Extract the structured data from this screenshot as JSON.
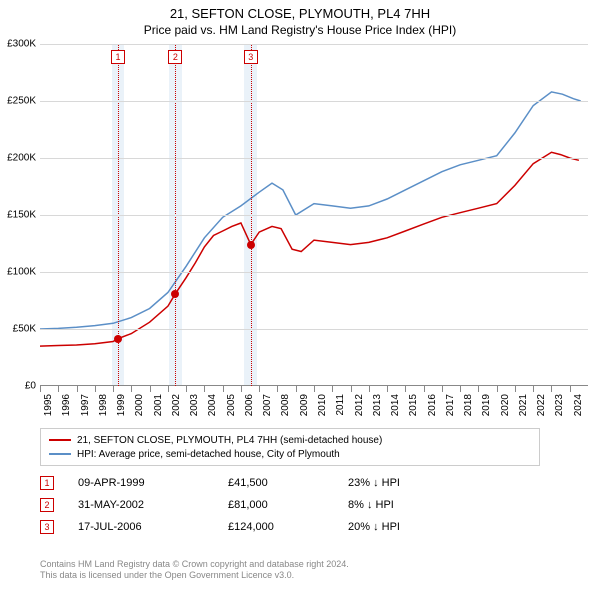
{
  "title": {
    "line1": "21, SEFTON CLOSE, PLYMOUTH, PL4 7HH",
    "line2": "Price paid vs. HM Land Registry's House Price Index (HPI)",
    "fontsize_line1": 13,
    "fontsize_line2": 12
  },
  "chart": {
    "type": "line",
    "background_color": "#ffffff",
    "grid_color": "#d8d8d8",
    "event_band_color": "#eaf2f9",
    "event_line_color": "#cc0000",
    "x": {
      "years": [
        1995,
        1996,
        1997,
        1998,
        1999,
        2000,
        2001,
        2002,
        2003,
        2004,
        2005,
        2006,
        2007,
        2008,
        2009,
        2010,
        2011,
        2012,
        2013,
        2014,
        2015,
        2016,
        2017,
        2018,
        2019,
        2020,
        2021,
        2022,
        2023,
        2024
      ],
      "min": 1995,
      "max": 2025,
      "label_fontsize": 10
    },
    "y": {
      "min": 0,
      "max": 300000,
      "tick_step": 50000,
      "tick_labels": [
        "£0",
        "£50K",
        "£100K",
        "£150K",
        "£200K",
        "£250K",
        "£300K"
      ],
      "label_fontsize": 10
    },
    "series": [
      {
        "id": "property",
        "label": "21, SEFTON CLOSE, PLYMOUTH, PL4 7HH (semi-detached house)",
        "color": "#cc0000",
        "line_width": 1.5,
        "points": [
          [
            1995.0,
            35000
          ],
          [
            1996.0,
            35500
          ],
          [
            1997.0,
            36000
          ],
          [
            1998.0,
            37000
          ],
          [
            1999.0,
            39000
          ],
          [
            1999.27,
            41500
          ],
          [
            2000.0,
            46000
          ],
          [
            2001.0,
            56000
          ],
          [
            2002.0,
            70000
          ],
          [
            2002.41,
            81000
          ],
          [
            2003.0,
            95000
          ],
          [
            2003.5,
            108000
          ],
          [
            2004.0,
            122000
          ],
          [
            2004.5,
            132000
          ],
          [
            2005.0,
            136000
          ],
          [
            2005.5,
            140000
          ],
          [
            2006.0,
            143000
          ],
          [
            2006.54,
            124000
          ],
          [
            2007.0,
            135000
          ],
          [
            2007.7,
            140000
          ],
          [
            2008.2,
            138000
          ],
          [
            2008.8,
            120000
          ],
          [
            2009.3,
            118000
          ],
          [
            2010.0,
            128000
          ],
          [
            2011.0,
            126000
          ],
          [
            2012.0,
            124000
          ],
          [
            2013.0,
            126000
          ],
          [
            2014.0,
            130000
          ],
          [
            2015.0,
            136000
          ],
          [
            2016.0,
            142000
          ],
          [
            2017.0,
            148000
          ],
          [
            2018.0,
            152000
          ],
          [
            2019.0,
            156000
          ],
          [
            2020.0,
            160000
          ],
          [
            2021.0,
            176000
          ],
          [
            2022.0,
            195000
          ],
          [
            2023.0,
            205000
          ],
          [
            2023.5,
            203000
          ],
          [
            2024.0,
            200000
          ],
          [
            2024.5,
            198000
          ]
        ]
      },
      {
        "id": "hpi",
        "label": "HPI: Average price, semi-detached house, City of Plymouth",
        "color": "#5b8fc7",
        "line_width": 1.5,
        "points": [
          [
            1995.0,
            50000
          ],
          [
            1996.0,
            50500
          ],
          [
            1997.0,
            51500
          ],
          [
            1998.0,
            53000
          ],
          [
            1999.0,
            55000
          ],
          [
            2000.0,
            60000
          ],
          [
            2001.0,
            68000
          ],
          [
            2002.0,
            82000
          ],
          [
            2003.0,
            105000
          ],
          [
            2004.0,
            130000
          ],
          [
            2005.0,
            148000
          ],
          [
            2006.0,
            158000
          ],
          [
            2007.0,
            170000
          ],
          [
            2007.7,
            178000
          ],
          [
            2008.3,
            172000
          ],
          [
            2009.0,
            150000
          ],
          [
            2010.0,
            160000
          ],
          [
            2011.0,
            158000
          ],
          [
            2012.0,
            156000
          ],
          [
            2013.0,
            158000
          ],
          [
            2014.0,
            164000
          ],
          [
            2015.0,
            172000
          ],
          [
            2016.0,
            180000
          ],
          [
            2017.0,
            188000
          ],
          [
            2018.0,
            194000
          ],
          [
            2019.0,
            198000
          ],
          [
            2020.0,
            202000
          ],
          [
            2021.0,
            222000
          ],
          [
            2022.0,
            246000
          ],
          [
            2023.0,
            258000
          ],
          [
            2023.6,
            256000
          ],
          [
            2024.2,
            252000
          ],
          [
            2024.6,
            250000
          ]
        ]
      }
    ],
    "event_markers": [
      {
        "n": "1",
        "year": 1999.27,
        "band_half_width_years": 0.35
      },
      {
        "n": "2",
        "year": 2002.41,
        "band_half_width_years": 0.35
      },
      {
        "n": "3",
        "year": 2006.54,
        "band_half_width_years": 0.35
      }
    ],
    "sale_points": [
      {
        "year": 1999.27,
        "value": 41500,
        "color": "#cc0000"
      },
      {
        "year": 2002.41,
        "value": 81000,
        "color": "#cc0000"
      },
      {
        "year": 2006.54,
        "value": 124000,
        "color": "#cc0000"
      }
    ]
  },
  "legend": {
    "fontsize": 10,
    "border_color": "#cccccc",
    "items": [
      {
        "color": "#cc0000",
        "text": "21, SEFTON CLOSE, PLYMOUTH, PL4 7HH (semi-detached house)"
      },
      {
        "color": "#5b8fc7",
        "text": "HPI: Average price, semi-detached house, City of Plymouth"
      }
    ]
  },
  "sales_table": {
    "marker_border_color": "#cc0000",
    "fontsize": 11,
    "rows": [
      {
        "n": "1",
        "date": "09-APR-1999",
        "price": "£41,500",
        "delta": "23% ↓ HPI"
      },
      {
        "n": "2",
        "date": "31-MAY-2002",
        "price": "£81,000",
        "delta": "8% ↓ HPI"
      },
      {
        "n": "3",
        "date": "17-JUL-2006",
        "price": "£124,000",
        "delta": "20% ↓ HPI"
      }
    ]
  },
  "footer": {
    "line1": "Contains HM Land Registry data © Crown copyright and database right 2024.",
    "line2": "This data is licensed under the Open Government Licence v3.0.",
    "color": "#888888",
    "fontsize": 9
  }
}
